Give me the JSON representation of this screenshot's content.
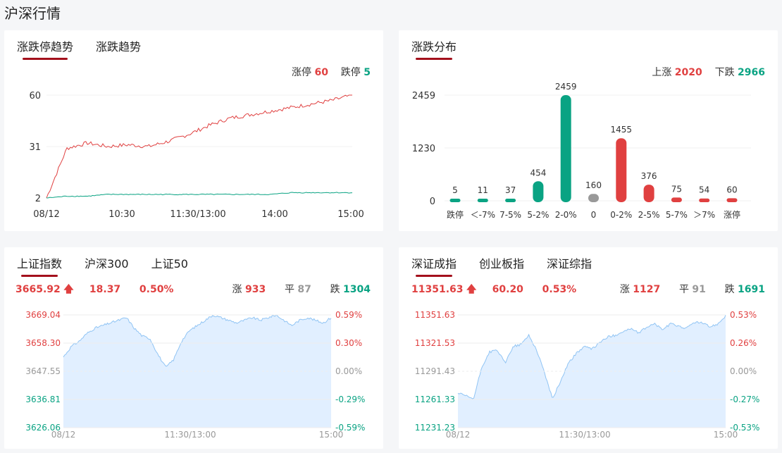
{
  "page_title": "沪深行情",
  "colors": {
    "up": "#e04040",
    "down": "#0aa383",
    "flat": "#999999",
    "accent": "#a3101c",
    "area_fill": "#e1efff",
    "area_line": "#90c4f4"
  },
  "limit_card": {
    "tabs": [
      "涨跌停趋势",
      "涨跌趋势"
    ],
    "up_label": "涨停",
    "up_value": "60",
    "down_label": "跌停",
    "down_value": "5"
  },
  "dist_card": {
    "tabs": [
      "涨跌分布"
    ],
    "up_label": "上涨",
    "up_value": "2020",
    "down_label": "下跌",
    "down_value": "2966"
  },
  "sh_card": {
    "tabs": [
      "上证指数",
      "沪深300",
      "上证50"
    ],
    "price": "3665.92",
    "change": "18.37",
    "pct": "0.50%",
    "up_label": "涨",
    "up_value": "933",
    "flat_label": "平",
    "flat_value": "87",
    "down_label": "跌",
    "down_value": "1304"
  },
  "sz_card": {
    "tabs": [
      "深证成指",
      "创业板指",
      "深证综指"
    ],
    "price": "11351.63",
    "change": "60.20",
    "pct": "0.53%",
    "up_label": "涨",
    "up_value": "1127",
    "flat_label": "平",
    "flat_value": "91",
    "down_label": "跌",
    "down_value": "1691"
  },
  "chart_data": [
    {
      "type": "line",
      "xticks": [
        "08/12",
        "10:30",
        "11:30/13:00",
        "14:00",
        "15:00"
      ],
      "yticks": [
        "60",
        "31",
        "2"
      ],
      "ylim": [
        2,
        60
      ],
      "series": [
        {
          "name": "涨停",
          "color": "#e04040",
          "values": [
            2,
            30,
            33,
            31,
            32,
            31,
            34,
            38,
            43,
            47,
            49,
            51,
            53,
            55,
            57,
            60
          ]
        },
        {
          "name": "跌停",
          "color": "#0aa383",
          "values": [
            2,
            3,
            3,
            4,
            4,
            4,
            4,
            4,
            4,
            4,
            4,
            4,
            5,
            5,
            5,
            5
          ]
        }
      ]
    },
    {
      "type": "bar",
      "categories": [
        "跌停",
        "＜-7%",
        "7-5%",
        "5-2%",
        "2-0%",
        "0",
        "0-2%",
        "2-5%",
        "5-7%",
        "＞7%",
        "涨停"
      ],
      "values": [
        5,
        11,
        37,
        454,
        2459,
        160,
        1455,
        376,
        75,
        54,
        60
      ],
      "bar_colors": [
        "#0aa383",
        "#0aa383",
        "#0aa383",
        "#0aa383",
        "#0aa383",
        "#999999",
        "#e04040",
        "#e04040",
        "#e04040",
        "#e04040",
        "#e04040"
      ],
      "yticks": [
        "2459",
        "1230",
        "0"
      ],
      "ylim": [
        0,
        2459
      ]
    },
    {
      "type": "area",
      "yticks_left": [
        "3669.04",
        "3658.30",
        "3647.55",
        "3636.81",
        "3626.06"
      ],
      "yticks_right": [
        "0.59%",
        "0.30%",
        "0.00%",
        "-0.29%",
        "-0.59%"
      ],
      "xticks": [
        "08/12",
        "11:30/13:00",
        "15:00"
      ],
      "ylim": [
        3626.06,
        3669.04
      ],
      "values": [
        3653,
        3657,
        3659,
        3662,
        3664,
        3665,
        3666,
        3667,
        3668,
        3664,
        3661,
        3660,
        3654,
        3649,
        3652,
        3659,
        3663,
        3665,
        3667,
        3669,
        3668,
        3667,
        3666,
        3667,
        3668,
        3667,
        3668,
        3669,
        3667,
        3665,
        3667,
        3668,
        3667,
        3666,
        3668
      ]
    },
    {
      "type": "area",
      "yticks_left": [
        "11351.63",
        "11321.53",
        "11291.43",
        "11261.33",
        "11231.23"
      ],
      "yticks_right": [
        "0.53%",
        "0.26%",
        "0.00%",
        "-0.27%",
        "-0.53%"
      ],
      "xticks": [
        "08/12",
        "11:30/13:00",
        "15:00"
      ],
      "ylim": [
        11231.23,
        11351.63
      ],
      "values": [
        11268,
        11265,
        11262,
        11295,
        11312,
        11314,
        11300,
        11318,
        11320,
        11330,
        11314,
        11290,
        11262,
        11280,
        11300,
        11310,
        11318,
        11315,
        11322,
        11328,
        11330,
        11334,
        11337,
        11332,
        11339,
        11342,
        11336,
        11342,
        11340,
        11337,
        11344,
        11343,
        11339,
        11342,
        11351
      ]
    }
  ]
}
